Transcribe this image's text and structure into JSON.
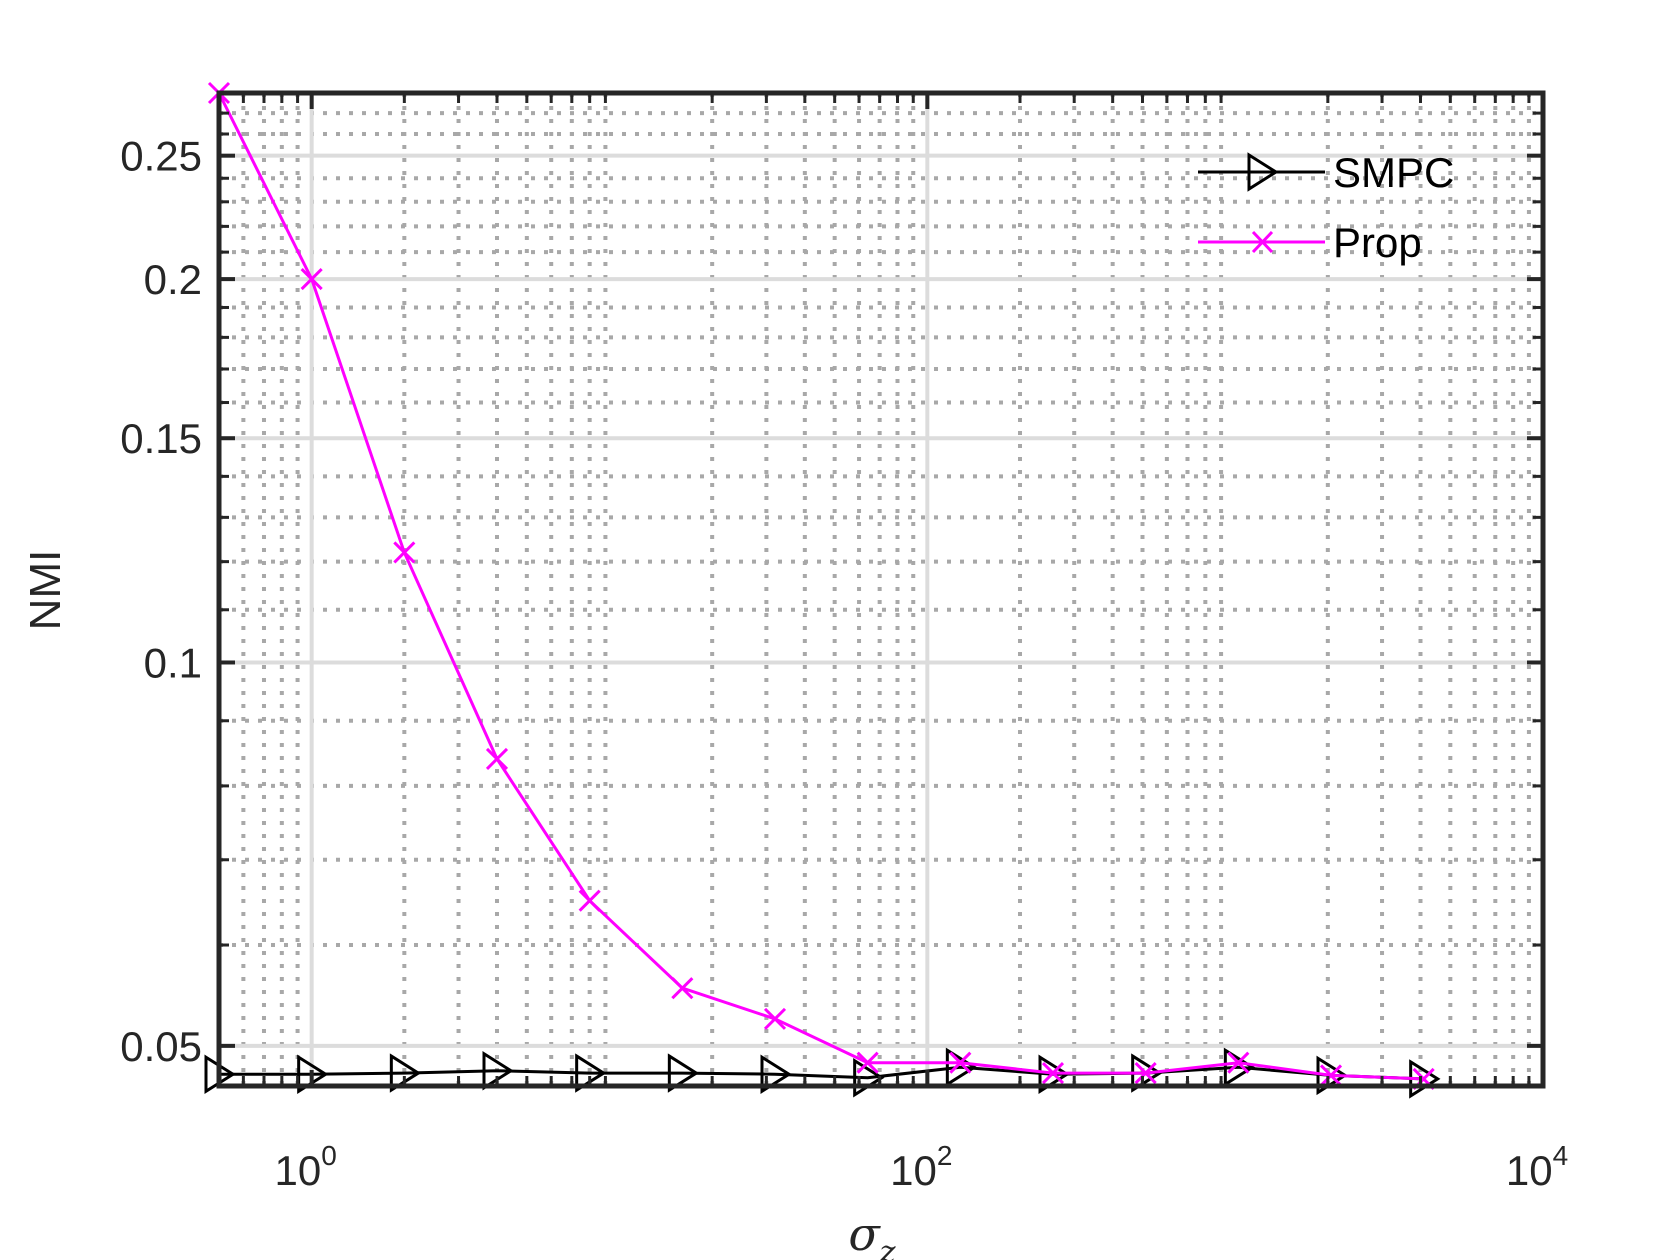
{
  "chart_data": {
    "type": "line",
    "xscale": "log",
    "yscale": "log",
    "xlabel": "σ",
    "xlabel_subscript": "z",
    "ylabel": "NMI",
    "xlim": [
      0.5,
      10000
    ],
    "ylim": [
      0.0465,
      0.28
    ],
    "grid": true,
    "minor_grid": true,
    "legend_position": "top-right",
    "x_ticks": [
      {
        "value": 1,
        "base": "10",
        "exp": "0"
      },
      {
        "value": 100,
        "base": "10",
        "exp": "2"
      },
      {
        "value": 10000,
        "base": "10",
        "exp": "4"
      }
    ],
    "y_ticks": [
      {
        "value": 0.05,
        "label": "0.05"
      },
      {
        "value": 0.1,
        "label": "0.1"
      },
      {
        "value": 0.15,
        "label": "0.15"
      },
      {
        "value": 0.2,
        "label": "0.2"
      },
      {
        "value": 0.25,
        "label": "0.25"
      }
    ],
    "x": [
      0.5,
      1,
      2,
      4,
      8,
      16,
      32,
      64,
      128,
      256,
      512,
      1024,
      2048,
      4096
    ],
    "series": [
      {
        "name": "SMPC",
        "color": "#000000",
        "marker": "triangle-right",
        "values": [
          0.0475,
          0.0475,
          0.0476,
          0.0478,
          0.0476,
          0.0476,
          0.0475,
          0.0472,
          0.0481,
          0.0475,
          0.0476,
          0.0481,
          0.0474,
          0.0471
        ]
      },
      {
        "name": "Prop",
        "color": "#ff00ff",
        "marker": "x",
        "values": [
          0.28,
          0.2,
          0.122,
          0.084,
          0.065,
          0.0555,
          0.0525,
          0.0485,
          0.0485,
          0.0476,
          0.0476,
          0.0485,
          0.0474,
          0.0471
        ]
      }
    ]
  }
}
